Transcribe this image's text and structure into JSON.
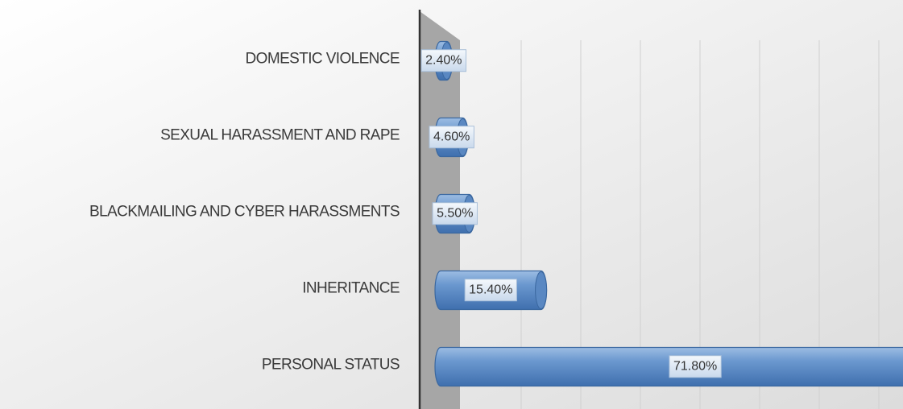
{
  "chart_data": {
    "type": "bar",
    "orientation": "horizontal",
    "categories": [
      "DOMESTIC VIOLENCE",
      "SEXUAL HARASSMENT AND RAPE",
      "BLACKMAILING AND CYBER HARASSMENTS",
      "INHERITANCE",
      "PERSONAL STATUS"
    ],
    "values": [
      2.4,
      4.6,
      5.5,
      15.4,
      71.8
    ],
    "value_labels": [
      "2.40%",
      "4.60%",
      "5.50%",
      "15.40%",
      "71.80%"
    ],
    "color": "#4f81bd",
    "grid": true
  }
}
